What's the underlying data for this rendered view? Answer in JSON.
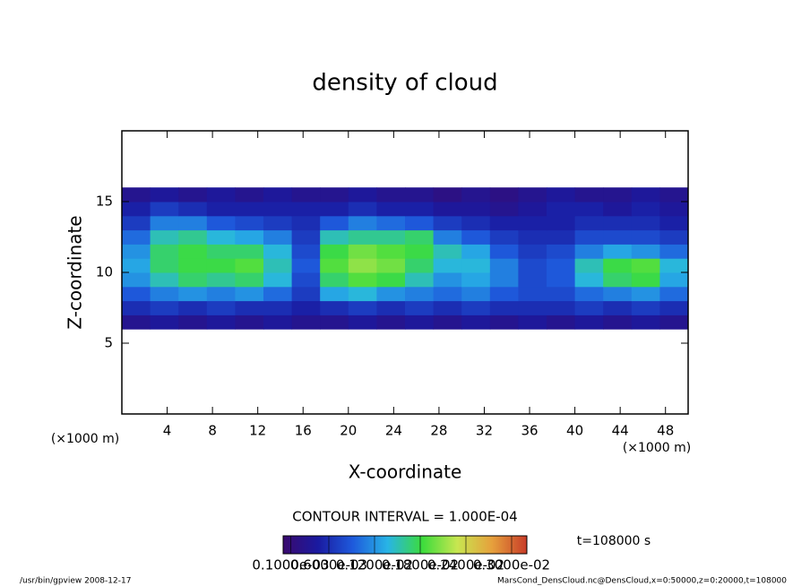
{
  "chart_data": {
    "type": "heatmap",
    "title": "density of cloud",
    "x_label": "X-coordinate",
    "y_label": "Z-coordinate",
    "x_unit_left": "(×1000 m)",
    "x_unit_right": "(×1000 m)",
    "xlim": [
      0,
      50
    ],
    "ylim": [
      0,
      20
    ],
    "xticks": [
      4,
      8,
      12,
      16,
      20,
      24,
      28,
      32,
      36,
      40,
      44,
      48
    ],
    "yticks": [
      5,
      10,
      15
    ],
    "x": [
      1.25,
      3.75,
      6.25,
      8.75,
      11.25,
      13.75,
      16.25,
      18.75,
      21.25,
      23.75,
      26.25,
      28.75,
      31.25,
      33.75,
      36.25,
      38.75,
      41.25,
      43.75,
      46.25,
      48.75
    ],
    "y": [
      6.5,
      7.5,
      8.5,
      9.5,
      10.5,
      11.5,
      12.5,
      13.5,
      14.5,
      15.5
    ],
    "z": [
      [
        0.0003,
        0.0004,
        0.0003,
        0.0004,
        0.0003,
        0.0004,
        0.0003,
        0.0003,
        0.0004,
        0.0003,
        0.0004,
        0.0003,
        0.0004,
        0.0003,
        0.0004,
        0.0003,
        0.0004,
        0.0003,
        0.0004,
        0.0003
      ],
      [
        0.0006,
        0.0007,
        0.0006,
        0.0007,
        0.0006,
        0.0006,
        0.0005,
        0.0006,
        0.0007,
        0.0006,
        0.0007,
        0.0006,
        0.0007,
        0.0006,
        0.0006,
        0.0006,
        0.0007,
        0.0006,
        0.0007,
        0.0006
      ],
      [
        0.0009,
        0.0011,
        0.0012,
        0.0011,
        0.0012,
        0.001,
        0.0007,
        0.0013,
        0.0014,
        0.0012,
        0.0011,
        0.001,
        0.0011,
        0.0009,
        0.0008,
        0.0008,
        0.001,
        0.0011,
        0.0012,
        0.001
      ],
      [
        0.0012,
        0.0015,
        0.0017,
        0.0016,
        0.0017,
        0.0014,
        0.0008,
        0.0017,
        0.0019,
        0.0018,
        0.0015,
        0.0012,
        0.0013,
        0.0011,
        0.0008,
        0.0009,
        0.0014,
        0.0017,
        0.0018,
        0.0013
      ],
      [
        0.0013,
        0.0017,
        0.0018,
        0.0018,
        0.0019,
        0.0015,
        0.0009,
        0.0019,
        0.0021,
        0.002,
        0.0017,
        0.0014,
        0.0014,
        0.0011,
        0.0008,
        0.0009,
        0.0015,
        0.0018,
        0.0019,
        0.0014
      ],
      [
        0.0012,
        0.0017,
        0.0018,
        0.0017,
        0.0017,
        0.0014,
        0.0008,
        0.0018,
        0.002,
        0.0019,
        0.0018,
        0.0015,
        0.0013,
        0.0009,
        0.0007,
        0.0008,
        0.0011,
        0.0013,
        0.0012,
        0.001
      ],
      [
        0.001,
        0.0015,
        0.0016,
        0.0014,
        0.0013,
        0.0011,
        0.0007,
        0.0015,
        0.0016,
        0.0016,
        0.0017,
        0.0011,
        0.0009,
        0.0007,
        0.0006,
        0.0006,
        0.0008,
        0.0008,
        0.0008,
        0.0007
      ],
      [
        0.0007,
        0.0011,
        0.0011,
        0.0009,
        0.0008,
        0.0007,
        0.0006,
        0.0009,
        0.0011,
        0.001,
        0.0009,
        0.0007,
        0.0006,
        0.0005,
        0.0005,
        0.0005,
        0.0006,
        0.0006,
        0.0006,
        0.0005
      ],
      [
        0.0005,
        0.0007,
        0.0006,
        0.0005,
        0.0005,
        0.0005,
        0.0005,
        0.0005,
        0.0006,
        0.0005,
        0.0005,
        0.0004,
        0.0004,
        0.0003,
        0.0004,
        0.0005,
        0.0005,
        0.0004,
        0.0005,
        0.0004
      ],
      [
        0.0003,
        0.0004,
        0.0003,
        0.0004,
        0.0003,
        0.0004,
        0.0003,
        0.0003,
        0.0004,
        0.0003,
        0.0003,
        0.0002,
        0.0003,
        0.0002,
        0.0003,
        0.0004,
        0.0003,
        0.0003,
        0.0004,
        0.0003
      ]
    ],
    "clim": [
      0,
      0.0032
    ],
    "colormap": [
      "#3a0a6e",
      "#1a1aa0",
      "#1e5adc",
      "#28b4e6",
      "#3cdc3c",
      "#c8e650",
      "#e6a03c",
      "#c83c28"
    ],
    "colorbar_ticks": [
      {
        "value": 0.0001,
        "label": "0.1000e-03"
      },
      {
        "value": 0.0006,
        "label": "0.6000e-03"
      },
      {
        "value": 0.0012,
        "label": "0.1200e-02"
      },
      {
        "value": 0.0018,
        "label": "0.1800e-02"
      },
      {
        "value": 0.0024,
        "label": "0.2400e-02"
      },
      {
        "value": 0.003,
        "label": "0.3000e-02"
      }
    ],
    "contour_interval": "CONTOUR INTERVAL = 1.000E-04",
    "time_label": "t=108000 s",
    "footer_left": "/usr/bin/gpview  2008-12-17",
    "footer_right": "MarsCond_DensCloud.nc@DensCloud,x=0:50000,z=0:20000,t=108000"
  }
}
